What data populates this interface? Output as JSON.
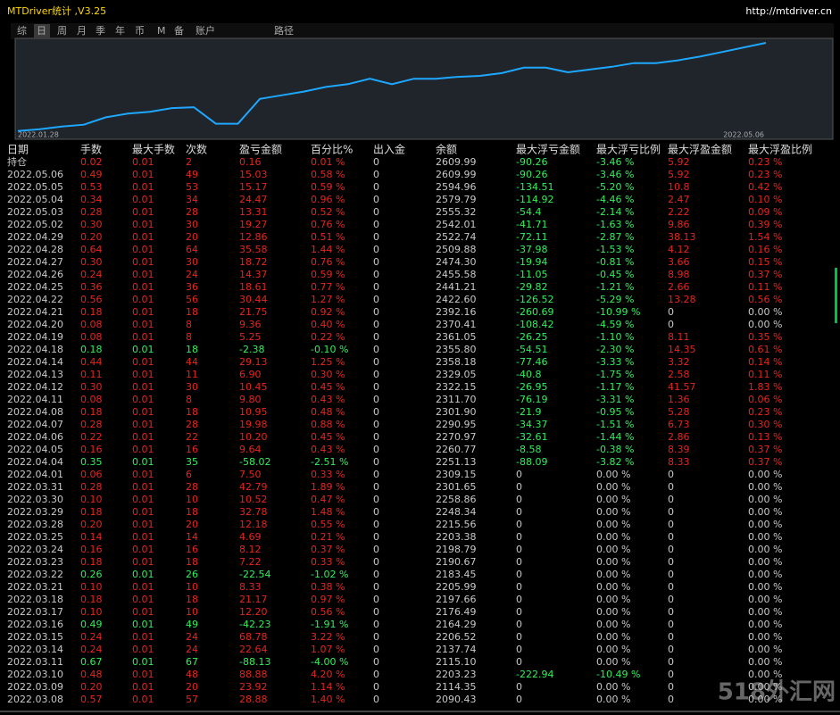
{
  "header": {
    "title": "MTDriver统计 ,V3.25",
    "url": "http://mtdriver.cn"
  },
  "tabs": [
    "综",
    "日",
    "周",
    "月",
    "季",
    "年",
    "币",
    "M",
    "备",
    "账户",
    "路径"
  ],
  "chart_data": {
    "type": "line",
    "x_start": "2022.01.28",
    "x_end": "2022.05.06",
    "color": "#1ea7ff",
    "values": [
      1612,
      1632,
      1664,
      1684,
      1768,
      1809,
      1830,
      1872,
      1882,
      1695,
      1695,
      1976,
      2017,
      2059,
      2111,
      2142,
      2204,
      2142,
      2204,
      2204,
      2225,
      2236,
      2267,
      2329,
      2329,
      2277,
      2308,
      2339,
      2381,
      2381,
      2412,
      2454,
      2506,
      2558,
      2610
    ],
    "ylim": [
      1580,
      2640
    ]
  },
  "table": {
    "columns": [
      "日期",
      "手数",
      "最大手数",
      "次数",
      "盈亏金额",
      "百分比%",
      "出入金",
      "余额",
      "最大浮亏金额",
      "最大浮亏比例",
      "最大浮盈金额",
      "最大浮盈比例"
    ],
    "rows": [
      [
        "持仓",
        "0.02",
        "0.01",
        "2",
        "0.16",
        "0.01 %",
        "0",
        "2609.99",
        "-90.26",
        "-3.46 %",
        "5.92",
        "0.23 %"
      ],
      [
        "2022.05.06",
        "0.49",
        "0.01",
        "49",
        "15.03",
        "0.58 %",
        "0",
        "2609.99",
        "-90.26",
        "-3.46 %",
        "5.92",
        "0.23 %"
      ],
      [
        "2022.05.05",
        "0.53",
        "0.01",
        "53",
        "15.17",
        "0.59 %",
        "0",
        "2594.96",
        "-134.51",
        "-5.20 %",
        "10.8",
        "0.42 %"
      ],
      [
        "2022.05.04",
        "0.34",
        "0.01",
        "34",
        "24.47",
        "0.96 %",
        "0",
        "2579.79",
        "-114.92",
        "-4.46 %",
        "2.47",
        "0.10 %"
      ],
      [
        "2022.05.03",
        "0.28",
        "0.01",
        "28",
        "13.31",
        "0.52 %",
        "0",
        "2555.32",
        "-54.4",
        "-2.14 %",
        "2.22",
        "0.09 %"
      ],
      [
        "2022.05.02",
        "0.30",
        "0.01",
        "30",
        "19.27",
        "0.76 %",
        "0",
        "2542.01",
        "-41.71",
        "-1.63 %",
        "9.86",
        "0.39 %"
      ],
      [
        "2022.04.29",
        "0.20",
        "0.01",
        "20",
        "12.86",
        "0.51 %",
        "0",
        "2522.74",
        "-72.11",
        "-2.87 %",
        "38.13",
        "1.54 %"
      ],
      [
        "2022.04.28",
        "0.64",
        "0.01",
        "64",
        "35.58",
        "1.44 %",
        "0",
        "2509.88",
        "-37.98",
        "-1.53 %",
        "4.12",
        "0.16 %"
      ],
      [
        "2022.04.27",
        "0.30",
        "0.01",
        "30",
        "18.72",
        "0.76 %",
        "0",
        "2474.30",
        "-19.94",
        "-0.81 %",
        "3.66",
        "0.15 %"
      ],
      [
        "2022.04.26",
        "0.24",
        "0.01",
        "24",
        "14.37",
        "0.59 %",
        "0",
        "2455.58",
        "-11.05",
        "-0.45 %",
        "8.98",
        "0.37 %"
      ],
      [
        "2022.04.25",
        "0.36",
        "0.01",
        "36",
        "18.61",
        "0.77 %",
        "0",
        "2441.21",
        "-29.82",
        "-1.21 %",
        "2.66",
        "0.11 %"
      ],
      [
        "2022.04.22",
        "0.56",
        "0.01",
        "56",
        "30.44",
        "1.27 %",
        "0",
        "2422.60",
        "-126.52",
        "-5.29 %",
        "13.28",
        "0.56 %"
      ],
      [
        "2022.04.21",
        "0.18",
        "0.01",
        "18",
        "21.75",
        "0.92 %",
        "0",
        "2392.16",
        "-260.69",
        "-10.99 %",
        "0",
        "0.00 %"
      ],
      [
        "2022.04.20",
        "0.08",
        "0.01",
        "8",
        "9.36",
        "0.40 %",
        "0",
        "2370.41",
        "-108.42",
        "-4.59 %",
        "0",
        "0.00 %"
      ],
      [
        "2022.04.19",
        "0.08",
        "0.01",
        "8",
        "5.25",
        "0.22 %",
        "0",
        "2361.05",
        "-26.25",
        "-1.10 %",
        "8.11",
        "0.35 %"
      ],
      [
        "2022.04.18",
        "0.18",
        "0.01",
        "18",
        "-2.38",
        "-0.10 %",
        "0",
        "2355.80",
        "-54.51",
        "-2.30 %",
        "14.35",
        "0.61 %"
      ],
      [
        "2022.04.14",
        "0.44",
        "0.01",
        "44",
        "29.13",
        "1.25 %",
        "0",
        "2358.18",
        "-77.46",
        "-3.33 %",
        "3.32",
        "0.14 %"
      ],
      [
        "2022.04.13",
        "0.11",
        "0.01",
        "11",
        "6.90",
        "0.30 %",
        "0",
        "2329.05",
        "-40.8",
        "-1.75 %",
        "2.58",
        "0.11 %"
      ],
      [
        "2022.04.12",
        "0.30",
        "0.01",
        "30",
        "10.45",
        "0.45 %",
        "0",
        "2322.15",
        "-26.95",
        "-1.17 %",
        "41.57",
        "1.83 %"
      ],
      [
        "2022.04.11",
        "0.08",
        "0.01",
        "8",
        "9.80",
        "0.43 %",
        "0",
        "2311.70",
        "-76.19",
        "-3.31 %",
        "1.36",
        "0.06 %"
      ],
      [
        "2022.04.08",
        "0.18",
        "0.01",
        "18",
        "10.95",
        "0.48 %",
        "0",
        "2301.90",
        "-21.9",
        "-0.95 %",
        "5.28",
        "0.23 %"
      ],
      [
        "2022.04.07",
        "0.28",
        "0.01",
        "28",
        "19.98",
        "0.88 %",
        "0",
        "2290.95",
        "-34.37",
        "-1.51 %",
        "6.73",
        "0.30 %"
      ],
      [
        "2022.04.06",
        "0.22",
        "0.01",
        "22",
        "10.20",
        "0.45 %",
        "0",
        "2270.97",
        "-32.61",
        "-1.44 %",
        "2.86",
        "0.13 %"
      ],
      [
        "2022.04.05",
        "0.16",
        "0.01",
        "16",
        "9.64",
        "0.43 %",
        "0",
        "2260.77",
        "-8.58",
        "-0.38 %",
        "8.39",
        "0.37 %"
      ],
      [
        "2022.04.04",
        "0.35",
        "0.01",
        "35",
        "-58.02",
        "-2.51 %",
        "0",
        "2251.13",
        "-88.09",
        "-3.82 %",
        "8.33",
        "0.37 %"
      ],
      [
        "2022.04.01",
        "0.06",
        "0.01",
        "6",
        "7.50",
        "0.33 %",
        "0",
        "2309.15",
        "0",
        "0.00 %",
        "0",
        "0.00 %"
      ],
      [
        "2022.03.31",
        "0.28",
        "0.01",
        "28",
        "42.79",
        "1.89 %",
        "0",
        "2301.65",
        "0",
        "0.00 %",
        "0",
        "0.00 %"
      ],
      [
        "2022.03.30",
        "0.10",
        "0.01",
        "10",
        "10.52",
        "0.47 %",
        "0",
        "2258.86",
        "0",
        "0.00 %",
        "0",
        "0.00 %"
      ],
      [
        "2022.03.29",
        "0.18",
        "0.01",
        "18",
        "32.78",
        "1.48 %",
        "0",
        "2248.34",
        "0",
        "0.00 %",
        "0",
        "0.00 %"
      ],
      [
        "2022.03.28",
        "0.20",
        "0.01",
        "20",
        "12.18",
        "0.55 %",
        "0",
        "2215.56",
        "0",
        "0.00 %",
        "0",
        "0.00 %"
      ],
      [
        "2022.03.25",
        "0.14",
        "0.01",
        "14",
        "4.69",
        "0.21 %",
        "0",
        "2203.38",
        "0",
        "0.00 %",
        "0",
        "0.00 %"
      ],
      [
        "2022.03.24",
        "0.16",
        "0.01",
        "16",
        "8.12",
        "0.37 %",
        "0",
        "2198.79",
        "0",
        "0.00 %",
        "0",
        "0.00 %"
      ],
      [
        "2022.03.23",
        "0.18",
        "0.01",
        "18",
        "7.22",
        "0.33 %",
        "0",
        "2190.67",
        "0",
        "0.00 %",
        "0",
        "0.00 %"
      ],
      [
        "2022.03.22",
        "0.26",
        "0.01",
        "26",
        "-22.54",
        "-1.02 %",
        "0",
        "2183.45",
        "0",
        "0.00 %",
        "0",
        "0.00 %"
      ],
      [
        "2022.03.21",
        "0.10",
        "0.01",
        "10",
        "8.33",
        "0.38 %",
        "0",
        "2205.99",
        "0",
        "0.00 %",
        "0",
        "0.00 %"
      ],
      [
        "2022.03.18",
        "0.18",
        "0.01",
        "18",
        "21.17",
        "0.97 %",
        "0",
        "2197.66",
        "0",
        "0.00 %",
        "0",
        "0.00 %"
      ],
      [
        "2022.03.17",
        "0.10",
        "0.01",
        "10",
        "12.20",
        "0.56 %",
        "0",
        "2176.49",
        "0",
        "0.00 %",
        "0",
        "0.00 %"
      ],
      [
        "2022.03.16",
        "0.49",
        "0.01",
        "49",
        "-42.23",
        "-1.91 %",
        "0",
        "2164.29",
        "0",
        "0.00 %",
        "0",
        "0.00 %"
      ],
      [
        "2022.03.15",
        "0.24",
        "0.01",
        "24",
        "68.78",
        "3.22 %",
        "0",
        "2206.52",
        "0",
        "0.00 %",
        "0",
        "0.00 %"
      ],
      [
        "2022.03.14",
        "0.24",
        "0.01",
        "24",
        "22.64",
        "1.07 %",
        "0",
        "2137.74",
        "0",
        "0.00 %",
        "0",
        "0.00 %"
      ],
      [
        "2022.03.11",
        "0.67",
        "0.01",
        "67",
        "-88.13",
        "-4.00 %",
        "0",
        "2115.10",
        "0",
        "0.00 %",
        "0",
        "0.00 %"
      ],
      [
        "2022.03.10",
        "0.48",
        "0.01",
        "48",
        "88.88",
        "4.20 %",
        "0",
        "2203.23",
        "-222.94",
        "-10.49 %",
        "0",
        "0.00 %"
      ],
      [
        "2022.03.09",
        "0.20",
        "0.01",
        "20",
        "23.92",
        "1.14 %",
        "0",
        "2114.35",
        "0",
        "0.00 %",
        "0",
        "0.00 %"
      ],
      [
        "2022.03.08",
        "0.57",
        "0.01",
        "57",
        "28.88",
        "1.40 %",
        "0",
        "2090.43",
        "0",
        "0.00 %",
        "0",
        "0.00 %"
      ]
    ]
  },
  "watermark": "518外汇网"
}
